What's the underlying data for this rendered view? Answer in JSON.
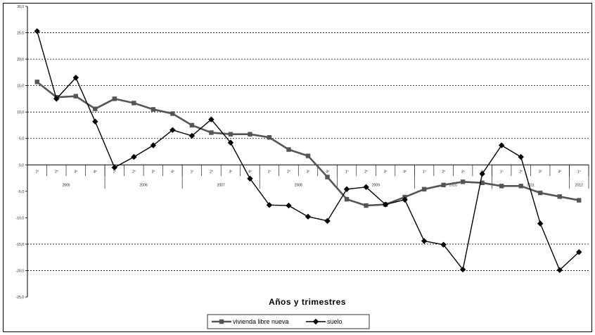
{
  "chart_data": {
    "type": "line",
    "xlabel": "Años y trimestres",
    "ylabel": "",
    "ylim": [
      -25,
      30
    ],
    "yticks": [
      30,
      25,
      20,
      15,
      10,
      5,
      0,
      -5,
      -10,
      -15,
      -20,
      -25
    ],
    "ytick_labels": [
      "30,0",
      "25,0",
      "20,0",
      "15,0",
      "10,0",
      "5,0",
      "0,0",
      "-5,0",
      "-10,0",
      "-15,0",
      "-20,0",
      "-25,0"
    ],
    "grid": "dotted horizontal at 25, 20, 15, 10, 5, -15, -20",
    "categories": [
      "1º",
      "2º",
      "3º",
      "4º",
      "1º",
      "2º",
      "3º",
      "4º",
      "1º",
      "2º",
      "3º",
      "4º",
      "1º",
      "2º",
      "3º",
      "4º",
      "1º",
      "2º",
      "3º",
      "4º",
      "1º",
      "2º",
      "3º",
      "4º",
      "1º",
      "2º",
      "3º",
      "4º",
      "1º"
    ],
    "years": [
      {
        "label": "2005",
        "start": 0,
        "end": 3
      },
      {
        "label": "2006",
        "start": 4,
        "end": 7
      },
      {
        "label": "2007",
        "start": 8,
        "end": 11
      },
      {
        "label": "2008",
        "start": 12,
        "end": 15
      },
      {
        "label": "2009",
        "start": 16,
        "end": 19
      },
      {
        "label": "2010",
        "start": 20,
        "end": 23
      },
      {
        "label": "2011",
        "start": 24,
        "end": 27
      },
      {
        "label": "2012",
        "start": 28,
        "end": 28
      }
    ],
    "series": [
      {
        "name": "vivienda libre nueva",
        "marker": "square",
        "color": "#555555",
        "values": [
          15.7,
          12.8,
          13.0,
          10.6,
          12.5,
          11.7,
          10.5,
          9.7,
          7.5,
          6.1,
          5.8,
          5.8,
          5.2,
          2.9,
          1.7,
          -2.3,
          -6.5,
          -7.7,
          -7.5,
          -6.1,
          -4.6,
          -3.8,
          -3.2,
          -3.4,
          -4.0,
          -4.0,
          -5.3,
          -6.0,
          -6.7
        ]
      },
      {
        "name": "suelo",
        "marker": "diamond",
        "color": "#000000",
        "values": [
          25.3,
          12.5,
          16.5,
          8.2,
          -0.5,
          1.5,
          3.7,
          6.6,
          5.5,
          8.6,
          4.2,
          -2.6,
          -7.6,
          -7.7,
          -9.8,
          -10.6,
          -4.6,
          -4.2,
          -7.5,
          -6.6,
          -14.4,
          -15.1,
          -19.8,
          -1.7,
          3.7,
          1.5,
          -11.1,
          -19.9,
          -16.5
        ]
      }
    ]
  }
}
